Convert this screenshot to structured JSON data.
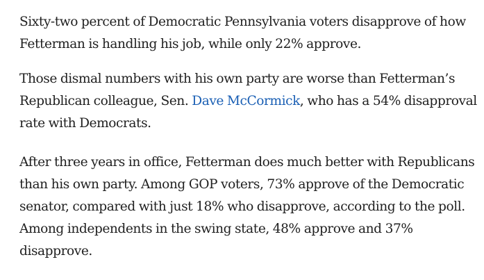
{
  "article": {
    "paragraph_1": {
      "line_1": "Sixty-two percent of Democratic Pennsylvania voters disapprove of how",
      "line_2": "Fetterman is handling his job, while only 22% approve."
    },
    "paragraph_2": {
      "line_1": "Those dismal numbers with his own party are worse than Fetterman’s",
      "line_2_before_link": "Republican colleague, Sen. ",
      "link_text": "Dave McCormick",
      "line_2_after_link": ", who has a 54% disapproval",
      "line_3": "rate with Democrats."
    },
    "paragraph_3": {
      "line_1": "After three years in office, Fetterman does much better with Republicans",
      "line_2": "than his own party. Among GOP voters, 73% approve of the Democratic",
      "line_3": "senator, compared with just 18% who disapprove, according to the poll.",
      "line_4": "Among independents in the swing state, 48% approve and 37%",
      "line_5": "disapprove."
    }
  },
  "colors": {
    "text": "#1f1f1f",
    "link": "#1a5fb4",
    "background": "#ffffff"
  }
}
